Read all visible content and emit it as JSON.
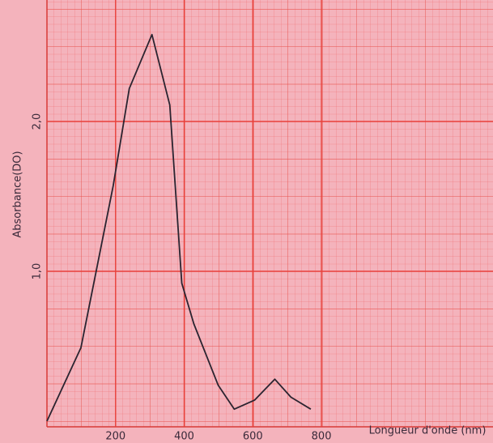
{
  "chart_data": {
    "type": "line",
    "x_label": "Longueur d'onde (nm)",
    "y_label": "Absorbance(DO)",
    "x": [
      0,
      99,
      193,
      240,
      306,
      358,
      393,
      428,
      499,
      546,
      605,
      664,
      711,
      769
    ],
    "values": [
      0,
      0.49,
      1.57,
      2.22,
      2.58,
      2.11,
      0.92,
      0.65,
      0.24,
      0.08,
      0.14,
      0.28,
      0.16,
      0.08
    ],
    "color": "#2b2430",
    "xlim": [
      0,
      1300
    ],
    "xticks": [
      200,
      400,
      600,
      800
    ],
    "ylim": [
      0,
      2.8
    ],
    "yticks": [
      {
        "value": 1,
        "label": "1,0"
      },
      {
        "value": 2,
        "label": "2,0"
      }
    ],
    "grid": true
  }
}
